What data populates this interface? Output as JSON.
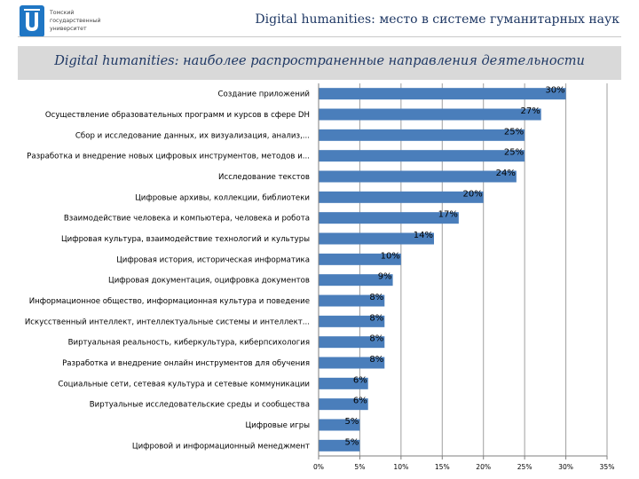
{
  "header": {
    "logo_lines": [
      "Томский",
      "государственный",
      "университет"
    ],
    "title": "Digital humanities: место в системе гуманитарных наук"
  },
  "banner": {
    "title": "Digital humanities: наиболее распространенные направления деятельности"
  },
  "colors": {
    "bar": "#4a7ebb",
    "banner": "#d9d9d9",
    "grid": "#9f9f9f",
    "title": "#1f3864"
  },
  "chart_data": {
    "type": "bar",
    "orientation": "horizontal",
    "categories": [
      "Создание приложений",
      "Осуществление образовательных программ и курсов в сфере DH",
      "Сбор и исследование данных, их визуализация, анализ,...",
      "Разработка и внедрение новых цифровых инструментов, методов и...",
      "Исследование текстов",
      "Цифровые архивы, коллекции, библиотеки",
      "Взаимодействие человека и компьютера, человека и робота",
      "Цифровая культура, взаимодействие технологий и культуры",
      "Цифровая история, историческая информатика",
      "Цифровая документация, оцифровка документов",
      "Информационное общество, информационная культура и поведение",
      "Искусственный интеллект, интеллектуальные системы и интеллект...",
      "Виртуальная реальность, киберкультура, киберпсихология",
      "Разработка и внедрение онлайн инструментов для обучения",
      "Социальные сети, сетевая культура и сетевые коммуникации",
      "Виртуальные исследовательские среды и сообщества",
      "Цифровые игры",
      "Цифровой и информационный менеджмент"
    ],
    "values": [
      30,
      27,
      25,
      25,
      24,
      20,
      17,
      14,
      10,
      9,
      8,
      8,
      8,
      8,
      6,
      6,
      5,
      5
    ],
    "data_labels": [
      "30%",
      "27%",
      "25%",
      "25%",
      "24%",
      "20%",
      "17%",
      "14%",
      "10%",
      "9%",
      "8%",
      "8%",
      "8%",
      "8%",
      "6%",
      "6%",
      "5%",
      "5%"
    ],
    "xlim": [
      0,
      35
    ],
    "x_ticks": [
      0,
      5,
      10,
      15,
      20,
      25,
      30,
      35
    ],
    "x_tick_labels": [
      "0%",
      "5%",
      "10%",
      "15%",
      "20%",
      "25%",
      "30%",
      "35%"
    ],
    "grid": "vertical"
  }
}
